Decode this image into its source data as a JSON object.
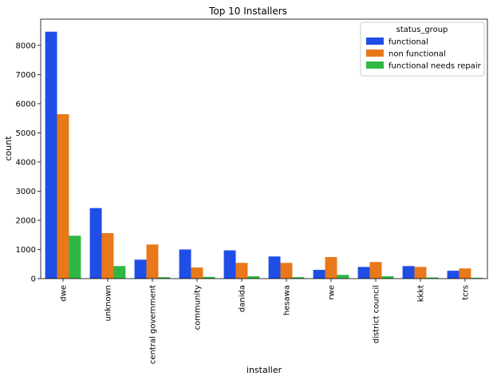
{
  "chart_data": {
    "type": "bar",
    "title": "Top 10 Installers",
    "xlabel": "installer",
    "ylabel": "count",
    "ylim": [
      0,
      8900
    ],
    "yticks": [
      0,
      1000,
      2000,
      3000,
      4000,
      5000,
      6000,
      7000,
      8000
    ],
    "categories": [
      "dwe",
      "unknown",
      "central government",
      "community",
      "danida",
      "hesawa",
      "rwe",
      "district council",
      "kkkt",
      "tcrs"
    ],
    "legend": {
      "title": "status_group",
      "position": "top-right"
    },
    "series": [
      {
        "name": "functional",
        "color": "#1f4ee6",
        "values": [
          8470,
          2420,
          650,
          1000,
          970,
          760,
          300,
          400,
          430,
          270
        ]
      },
      {
        "name": "non functional",
        "color": "#e8781a",
        "values": [
          5640,
          1560,
          1170,
          380,
          540,
          540,
          740,
          570,
          400,
          350
        ]
      },
      {
        "name": "functional needs repair",
        "color": "#2eb843",
        "values": [
          1470,
          430,
          50,
          60,
          80,
          50,
          130,
          80,
          40,
          30
        ]
      }
    ]
  }
}
